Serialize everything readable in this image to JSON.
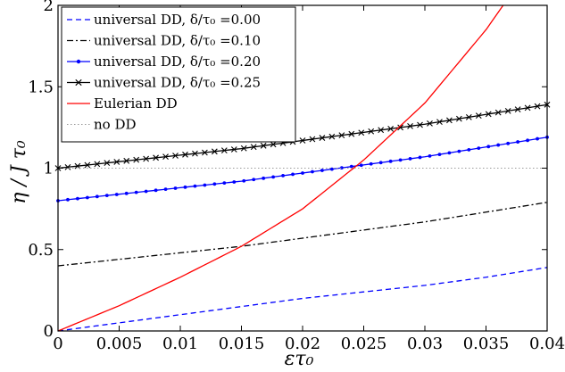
{
  "chart_data": {
    "type": "line",
    "title": "",
    "xlabel": "ετ₀",
    "ylabel": "η / J τ₀",
    "xlim": [
      0,
      0.04
    ],
    "ylim": [
      0,
      2
    ],
    "xticks": [
      0,
      0.005,
      0.01,
      0.015,
      0.02,
      0.025,
      0.03,
      0.035,
      0.04
    ],
    "xtick_labels": [
      "0",
      "0.005",
      "0.01",
      "0.015",
      "0.02",
      "0.025",
      "0.03",
      "0.035",
      "0.04"
    ],
    "yticks": [
      0,
      0.5,
      1,
      1.5,
      2
    ],
    "ytick_labels": [
      "0",
      "0.5",
      "1",
      "1.5",
      "2"
    ],
    "grid": false,
    "legend_position": "top-left",
    "series": [
      {
        "name": "universal DD, δ/τ₀ =0.00",
        "color": "#0000ff",
        "style": "dashed",
        "marker": "none",
        "x": [
          0,
          0.005,
          0.01,
          0.015,
          0.02,
          0.025,
          0.03,
          0.035,
          0.04
        ],
        "y": [
          0,
          0.05,
          0.1,
          0.15,
          0.2,
          0.24,
          0.28,
          0.33,
          0.39
        ]
      },
      {
        "name": "universal DD, δ/τ₀ =0.10",
        "color": "#000000",
        "style": "dashdot",
        "marker": "none",
        "x": [
          0,
          0.005,
          0.01,
          0.015,
          0.02,
          0.025,
          0.03,
          0.035,
          0.04
        ],
        "y": [
          0.4,
          0.44,
          0.48,
          0.52,
          0.57,
          0.62,
          0.67,
          0.73,
          0.79
        ]
      },
      {
        "name": "universal DD, δ/τ₀ =0.20",
        "color": "#0000ff",
        "style": "solid",
        "marker": "dot",
        "x": [
          0,
          0.005,
          0.01,
          0.015,
          0.02,
          0.025,
          0.03,
          0.035,
          0.04
        ],
        "y": [
          0.8,
          0.84,
          0.88,
          0.92,
          0.97,
          1.02,
          1.07,
          1.13,
          1.19
        ]
      },
      {
        "name": "universal DD, δ/τ₀ =0.25",
        "color": "#000000",
        "style": "solid",
        "marker": "x",
        "x": [
          0,
          0.005,
          0.01,
          0.015,
          0.02,
          0.025,
          0.03,
          0.035,
          0.04
        ],
        "y": [
          1.0,
          1.04,
          1.08,
          1.12,
          1.17,
          1.22,
          1.27,
          1.33,
          1.39
        ]
      },
      {
        "name": "Eulerian DD",
        "color": "#ff0000",
        "style": "solid",
        "marker": "none",
        "x": [
          0,
          0.005,
          0.01,
          0.015,
          0.02,
          0.025,
          0.03,
          0.035,
          0.0364
        ],
        "y": [
          0,
          0.155,
          0.33,
          0.52,
          0.75,
          1.05,
          1.4,
          1.85,
          2.0
        ]
      },
      {
        "name": "no DD",
        "color": "#9a9a9a",
        "style": "dotted",
        "marker": "none",
        "x": [
          0,
          0.04
        ],
        "y": [
          1,
          1
        ]
      }
    ]
  }
}
